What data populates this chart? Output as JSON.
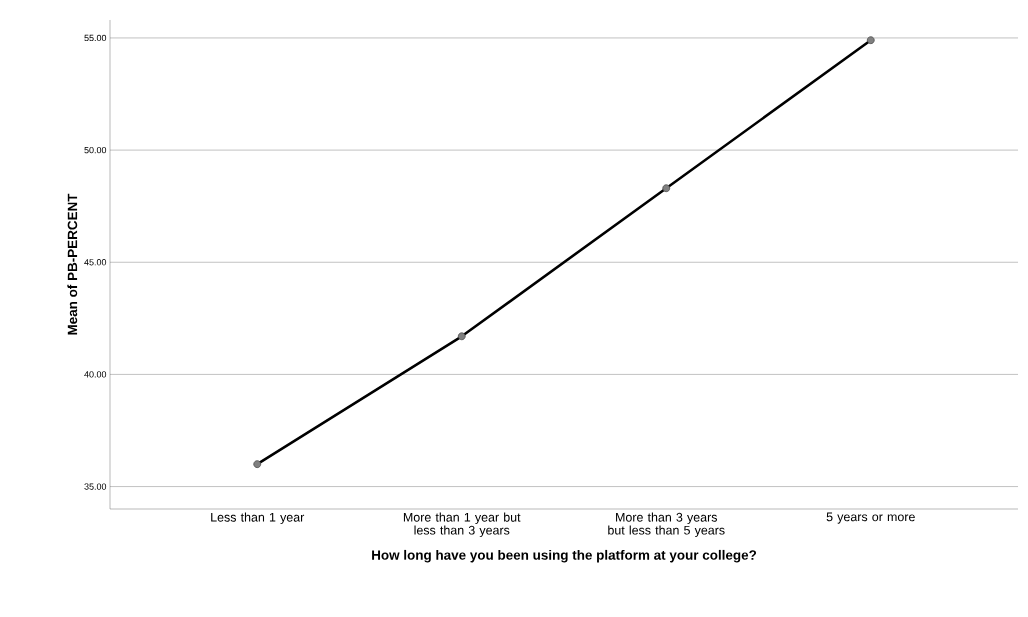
{
  "chart_data": {
    "type": "line",
    "xlabel": "How long have you been using the platform at your college?",
    "ylabel": "Mean of PB-PERCENT",
    "categories": [
      "Less than 1 year",
      "More than 1 year but less than 3 years",
      "More than 3 years but less than 5 years",
      "5 years or more"
    ],
    "series": [
      {
        "color": "#000000",
        "values": [
          36.0,
          41.7,
          48.3,
          54.9
        ]
      }
    ],
    "ylim": [
      34,
      55.8
    ],
    "yticks": [
      {
        "value": 35,
        "label": "35.00"
      },
      {
        "value": 40,
        "label": "40.00"
      },
      {
        "value": 45,
        "label": "45.00"
      },
      {
        "value": 50,
        "label": "50.00"
      },
      {
        "value": 55,
        "label": "55.00"
      }
    ],
    "grid": "y",
    "marker": "circle",
    "line_style": "solid"
  }
}
